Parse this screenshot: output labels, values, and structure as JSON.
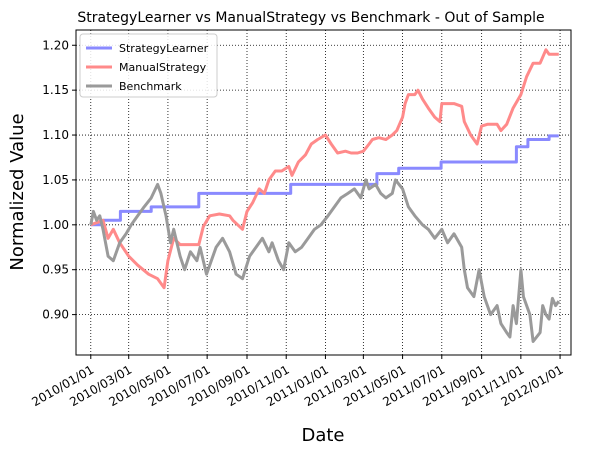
{
  "chart_data": {
    "type": "line",
    "title": "StrategyLearner vs ManualStrategy vs Benchmark - Out of Sample",
    "xlabel": "Date",
    "ylabel": "Normalized Value",
    "xlim": [
      "2009-12-09",
      "2012-01-18"
    ],
    "ylim": [
      0.855,
      1.217
    ],
    "grid": true,
    "legend": "top-left",
    "x_ticks": [
      "2010-01-01",
      "2010-03-01",
      "2010-05-01",
      "2010-07-01",
      "2010-09-01",
      "2010-11-01",
      "2011-01-01",
      "2011-03-01",
      "2011-05-01",
      "2011-07-01",
      "2011-09-01",
      "2011-11-01",
      "2012-01-01"
    ],
    "x_tick_labels": [
      "2010/01/01",
      "2010/03/01",
      "2010/05/01",
      "2010/07/01",
      "2010/09/01",
      "2010/11/01",
      "2011/01/01",
      "2011/03/01",
      "2011/05/01",
      "2011/07/01",
      "2011/09/01",
      "2011/11/01",
      "2012/01/01"
    ],
    "y_ticks": [
      0.9,
      0.95,
      1.0,
      1.05,
      1.1,
      1.15,
      1.2
    ],
    "y_tick_labels": [
      "0.90",
      "0.95",
      "1.00",
      "1.05",
      "1.10",
      "1.15",
      "1.20"
    ],
    "series": [
      {
        "name": "StrategyLearner",
        "color": "#8a8aff",
        "step": true,
        "points": [
          [
            "2010-01-01",
            1.0
          ],
          [
            "2010-01-20",
            1.005
          ],
          [
            "2010-02-16",
            1.015
          ],
          [
            "2010-04-05",
            1.02
          ],
          [
            "2010-06-18",
            1.035
          ],
          [
            "2010-11-08",
            1.045
          ],
          [
            "2011-03-22",
            1.057
          ],
          [
            "2011-04-25",
            1.063
          ],
          [
            "2011-06-30",
            1.07
          ],
          [
            "2011-10-25",
            1.087
          ],
          [
            "2011-11-12",
            1.095
          ],
          [
            "2011-12-15",
            1.099
          ],
          [
            "2011-12-30",
            1.099
          ]
        ]
      },
      {
        "name": "ManualStrategy",
        "color": "#ff8a8a",
        "points": [
          [
            "2010-01-01",
            1.0
          ],
          [
            "2010-01-20",
            1.005
          ],
          [
            "2010-01-28",
            0.985
          ],
          [
            "2010-02-05",
            0.995
          ],
          [
            "2010-02-15",
            0.98
          ],
          [
            "2010-03-01",
            0.965
          ],
          [
            "2010-03-15",
            0.955
          ],
          [
            "2010-04-01",
            0.945
          ],
          [
            "2010-04-15",
            0.94
          ],
          [
            "2010-04-25",
            0.93
          ],
          [
            "2010-05-01",
            0.96
          ],
          [
            "2010-05-10",
            0.985
          ],
          [
            "2010-05-20",
            0.978
          ],
          [
            "2010-06-18",
            0.978
          ],
          [
            "2010-06-25",
            0.998
          ],
          [
            "2010-07-05",
            1.01
          ],
          [
            "2010-07-20",
            1.012
          ],
          [
            "2010-08-05",
            1.01
          ],
          [
            "2010-08-10",
            1.005
          ],
          [
            "2010-08-25",
            0.995
          ],
          [
            "2010-09-01",
            1.015
          ],
          [
            "2010-09-10",
            1.025
          ],
          [
            "2010-09-20",
            1.04
          ],
          [
            "2010-09-28",
            1.035
          ],
          [
            "2010-10-05",
            1.05
          ],
          [
            "2010-10-15",
            1.06
          ],
          [
            "2010-10-25",
            1.06
          ],
          [
            "2010-11-05",
            1.065
          ],
          [
            "2010-11-10",
            1.055
          ],
          [
            "2010-11-20",
            1.07
          ],
          [
            "2010-12-01",
            1.078
          ],
          [
            "2010-12-10",
            1.09
          ],
          [
            "2010-12-20",
            1.095
          ],
          [
            "2011-01-01",
            1.1
          ],
          [
            "2011-01-10",
            1.09
          ],
          [
            "2011-01-20",
            1.08
          ],
          [
            "2011-02-01",
            1.082
          ],
          [
            "2011-02-10",
            1.08
          ],
          [
            "2011-02-20",
            1.08
          ],
          [
            "2011-03-01",
            1.082
          ],
          [
            "2011-03-10",
            1.09
          ],
          [
            "2011-03-15",
            1.095
          ],
          [
            "2011-03-25",
            1.097
          ],
          [
            "2011-04-05",
            1.095
          ],
          [
            "2011-04-15",
            1.1
          ],
          [
            "2011-04-22",
            1.105
          ],
          [
            "2011-05-01",
            1.12
          ],
          [
            "2011-05-05",
            1.135
          ],
          [
            "2011-05-10",
            1.145
          ],
          [
            "2011-05-20",
            1.145
          ],
          [
            "2011-05-25",
            1.15
          ],
          [
            "2011-06-01",
            1.14
          ],
          [
            "2011-06-10",
            1.13
          ],
          [
            "2011-06-20",
            1.12
          ],
          [
            "2011-06-28",
            1.115
          ],
          [
            "2011-07-01",
            1.135
          ],
          [
            "2011-07-20",
            1.135
          ],
          [
            "2011-08-01",
            1.132
          ],
          [
            "2011-08-05",
            1.115
          ],
          [
            "2011-08-15",
            1.1
          ],
          [
            "2011-08-25",
            1.09
          ],
          [
            "2011-09-01",
            1.11
          ],
          [
            "2011-09-10",
            1.112
          ],
          [
            "2011-09-25",
            1.112
          ],
          [
            "2011-10-01",
            1.105
          ],
          [
            "2011-10-10",
            1.112
          ],
          [
            "2011-10-20",
            1.13
          ],
          [
            "2011-11-01",
            1.145
          ],
          [
            "2011-11-10",
            1.165
          ],
          [
            "2011-11-20",
            1.18
          ],
          [
            "2011-12-01",
            1.18
          ],
          [
            "2011-12-10",
            1.195
          ],
          [
            "2011-12-15",
            1.19
          ],
          [
            "2011-12-30",
            1.19
          ]
        ]
      },
      {
        "name": "Benchmark",
        "color": "#9a9a9a",
        "points": [
          [
            "2010-01-01",
            1.0
          ],
          [
            "2010-01-05",
            1.015
          ],
          [
            "2010-01-10",
            1.005
          ],
          [
            "2010-01-15",
            1.01
          ],
          [
            "2010-01-20",
            0.995
          ],
          [
            "2010-01-28",
            0.965
          ],
          [
            "2010-02-05",
            0.96
          ],
          [
            "2010-02-15",
            0.98
          ],
          [
            "2010-02-25",
            0.99
          ],
          [
            "2010-03-05",
            1.0
          ],
          [
            "2010-03-15",
            1.01
          ],
          [
            "2010-03-25",
            1.02
          ],
          [
            "2010-04-05",
            1.03
          ],
          [
            "2010-04-15",
            1.045
          ],
          [
            "2010-04-20",
            1.035
          ],
          [
            "2010-04-28",
            1.01
          ],
          [
            "2010-05-05",
            0.98
          ],
          [
            "2010-05-10",
            0.995
          ],
          [
            "2010-05-20",
            0.965
          ],
          [
            "2010-05-27",
            0.95
          ],
          [
            "2010-06-05",
            0.97
          ],
          [
            "2010-06-15",
            0.96
          ],
          [
            "2010-06-20",
            0.975
          ],
          [
            "2010-06-30",
            0.945
          ],
          [
            "2010-07-05",
            0.955
          ],
          [
            "2010-07-15",
            0.975
          ],
          [
            "2010-07-25",
            0.985
          ],
          [
            "2010-08-05",
            0.97
          ],
          [
            "2010-08-15",
            0.945
          ],
          [
            "2010-08-25",
            0.94
          ],
          [
            "2010-09-05",
            0.965
          ],
          [
            "2010-09-15",
            0.975
          ],
          [
            "2010-09-25",
            0.985
          ],
          [
            "2010-10-05",
            0.97
          ],
          [
            "2010-10-10",
            0.98
          ],
          [
            "2010-10-20",
            0.96
          ],
          [
            "2010-10-28",
            0.95
          ],
          [
            "2010-11-05",
            0.98
          ],
          [
            "2010-11-15",
            0.97
          ],
          [
            "2010-11-25",
            0.975
          ],
          [
            "2010-12-05",
            0.985
          ],
          [
            "2010-12-15",
            0.995
          ],
          [
            "2010-12-25",
            1.0
          ],
          [
            "2011-01-05",
            1.01
          ],
          [
            "2011-01-15",
            1.02
          ],
          [
            "2011-01-25",
            1.03
          ],
          [
            "2011-02-05",
            1.035
          ],
          [
            "2011-02-15",
            1.04
          ],
          [
            "2011-02-25",
            1.03
          ],
          [
            "2011-03-05",
            1.05
          ],
          [
            "2011-03-10",
            1.04
          ],
          [
            "2011-03-20",
            1.045
          ],
          [
            "2011-03-28",
            1.035
          ],
          [
            "2011-04-05",
            1.03
          ],
          [
            "2011-04-15",
            1.035
          ],
          [
            "2011-04-20",
            1.05
          ],
          [
            "2011-05-01",
            1.04
          ],
          [
            "2011-05-10",
            1.02
          ],
          [
            "2011-05-20",
            1.01
          ],
          [
            "2011-06-01",
            1.0
          ],
          [
            "2011-06-10",
            0.995
          ],
          [
            "2011-06-20",
            0.985
          ],
          [
            "2011-07-01",
            0.995
          ],
          [
            "2011-07-10",
            0.98
          ],
          [
            "2011-07-20",
            0.99
          ],
          [
            "2011-08-01",
            0.975
          ],
          [
            "2011-08-05",
            0.95
          ],
          [
            "2011-08-10",
            0.93
          ],
          [
            "2011-08-20",
            0.92
          ],
          [
            "2011-08-28",
            0.95
          ],
          [
            "2011-09-05",
            0.92
          ],
          [
            "2011-09-15",
            0.9
          ],
          [
            "2011-09-25",
            0.91
          ],
          [
            "2011-10-01",
            0.89
          ],
          [
            "2011-10-10",
            0.88
          ],
          [
            "2011-10-15",
            0.875
          ],
          [
            "2011-10-20",
            0.91
          ],
          [
            "2011-10-25",
            0.89
          ],
          [
            "2011-11-01",
            0.95
          ],
          [
            "2011-11-05",
            0.92
          ],
          [
            "2011-11-15",
            0.9
          ],
          [
            "2011-11-20",
            0.87
          ],
          [
            "2011-12-01",
            0.88
          ],
          [
            "2011-12-05",
            0.91
          ],
          [
            "2011-12-10",
            0.9
          ],
          [
            "2011-12-15",
            0.895
          ],
          [
            "2011-12-20",
            0.918
          ],
          [
            "2011-12-25",
            0.91
          ],
          [
            "2011-12-30",
            0.915
          ]
        ]
      }
    ]
  }
}
